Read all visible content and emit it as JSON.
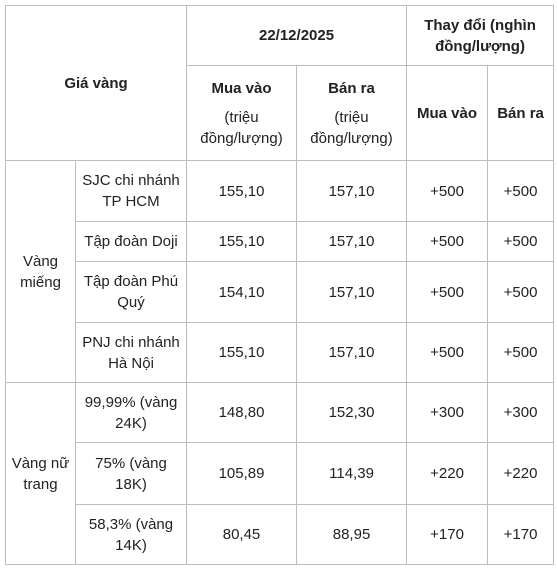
{
  "header": {
    "gia_vang": "Giá vàng",
    "date": "22/12/2025",
    "change": "Thay đổi (nghìn đồng/lượng)",
    "buy_label": "Mua vào",
    "sell_label": "Bán ra",
    "unit": "(triệu đồng/lượng)",
    "change_buy": "Mua vào",
    "change_sell": "Bán ra"
  },
  "groups": [
    {
      "name": "Vàng miếng",
      "rows": [
        {
          "seller": "SJC chi nhánh TP HCM",
          "buy": "155,10",
          "sell": "157,10",
          "chg_buy": "+500",
          "chg_sell": "+500"
        },
        {
          "seller": "Tập đoàn Doji",
          "buy": "155,10",
          "sell": "157,10",
          "chg_buy": "+500",
          "chg_sell": "+500"
        },
        {
          "seller": "Tập đoàn Phú Quý",
          "buy": "154,10",
          "sell": "157,10",
          "chg_buy": "+500",
          "chg_sell": "+500"
        },
        {
          "seller": "PNJ chi nhánh Hà Nội",
          "buy": "155,10",
          "sell": "157,10",
          "chg_buy": "+500",
          "chg_sell": "+500"
        }
      ]
    },
    {
      "name": "Vàng nữ trang",
      "rows": [
        {
          "seller": "99,99% (vàng 24K)",
          "buy": "148,80",
          "sell": "152,30",
          "chg_buy": "+300",
          "chg_sell": "+300"
        },
        {
          "seller": "75% (vàng 18K)",
          "buy": "105,89",
          "sell": "114,39",
          "chg_buy": "+220",
          "chg_sell": "+220"
        },
        {
          "seller": "58,3% (vàng 14K)",
          "buy": "80,45",
          "sell": "88,95",
          "chg_buy": "+170",
          "chg_sell": "+170"
        }
      ]
    }
  ]
}
